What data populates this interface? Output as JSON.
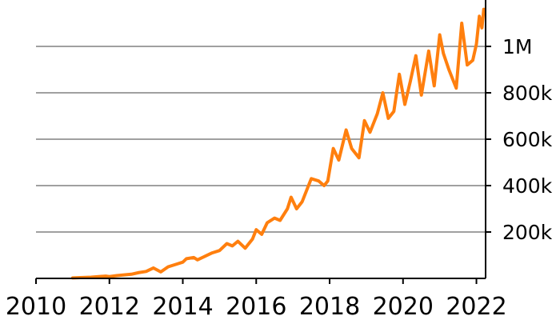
{
  "chart_data": {
    "type": "line",
    "title": "",
    "xlabel": "",
    "ylabel": "",
    "xlim": [
      2010,
      2022.25
    ],
    "ylim": [
      0,
      1200000
    ],
    "grid": "horizontal",
    "y_axis_position": "right",
    "x_ticks": [
      2010,
      2012,
      2014,
      2016,
      2018,
      2020,
      2022
    ],
    "x_tick_labels": [
      "2010",
      "2012",
      "2014",
      "2016",
      "2018",
      "2020",
      "2022"
    ],
    "y_ticks": [
      200000,
      400000,
      600000,
      800000,
      1000000
    ],
    "y_tick_labels": [
      "200k",
      "400k",
      "600k",
      "800k",
      "1M"
    ],
    "series": [
      {
        "color": "#ff7f0e",
        "x": [
          2011.0,
          2011.5,
          2011.9,
          2012.0,
          2012.2,
          2012.4,
          2012.6,
          2012.8,
          2013.0,
          2013.2,
          2013.4,
          2013.6,
          2013.8,
          2014.0,
          2014.1,
          2014.3,
          2014.4,
          2014.6,
          2014.8,
          2015.0,
          2015.2,
          2015.35,
          2015.5,
          2015.7,
          2015.9,
          2016.0,
          2016.15,
          2016.3,
          2016.5,
          2016.65,
          2016.85,
          2016.95,
          2017.1,
          2017.25,
          2017.5,
          2017.7,
          2017.85,
          2017.95,
          2018.1,
          2018.25,
          2018.45,
          2018.6,
          2018.8,
          2018.95,
          2019.1,
          2019.3,
          2019.45,
          2019.6,
          2019.75,
          2019.9,
          2020.05,
          2020.2,
          2020.35,
          2020.5,
          2020.7,
          2020.85,
          2021.0,
          2021.1,
          2021.25,
          2021.45,
          2021.6,
          2021.75,
          2021.9,
          2022.0,
          2022.08,
          2022.15,
          2022.2
        ],
        "y": [
          2000,
          5000,
          10000,
          8000,
          12000,
          15000,
          18000,
          25000,
          30000,
          45000,
          28000,
          50000,
          60000,
          70000,
          85000,
          90000,
          80000,
          95000,
          110000,
          120000,
          150000,
          140000,
          160000,
          130000,
          170000,
          210000,
          190000,
          240000,
          260000,
          250000,
          300000,
          350000,
          300000,
          330000,
          430000,
          420000,
          400000,
          420000,
          560000,
          510000,
          640000,
          560000,
          520000,
          680000,
          630000,
          710000,
          800000,
          690000,
          720000,
          880000,
          750000,
          850000,
          960000,
          790000,
          980000,
          830000,
          1050000,
          970000,
          900000,
          820000,
          1100000,
          920000,
          940000,
          1010000,
          1130000,
          1080000,
          1160000
        ]
      }
    ]
  }
}
